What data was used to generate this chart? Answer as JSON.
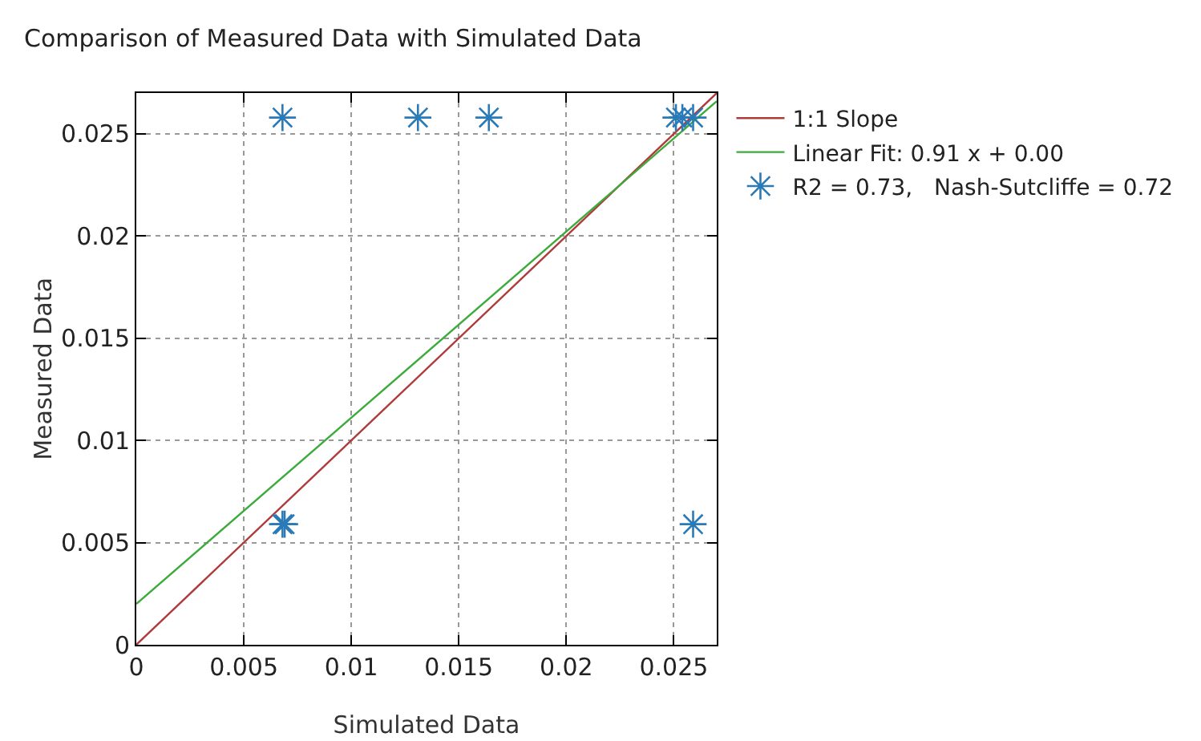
{
  "chart_data": {
    "type": "scatter",
    "title": "Comparison of Measured Data with Simulated Data",
    "xlabel": "Simulated Data",
    "ylabel": "Measured Data",
    "xlim": [
      0,
      0.027
    ],
    "ylim": [
      0,
      0.027
    ],
    "xticks": [
      0,
      0.005,
      0.01,
      0.015,
      0.02,
      0.025
    ],
    "yticks": [
      0,
      0.005,
      0.01,
      0.015,
      0.02,
      0.025
    ],
    "grid": true,
    "legend": "top right",
    "series": [
      {
        "name": "1:1 Slope",
        "type": "line",
        "color": "#b03a3a",
        "x": [
          0,
          0.027
        ],
        "values": [
          0,
          0.027
        ],
        "line_style": "solid",
        "marker": "none"
      },
      {
        "name": "Linear Fit: 0.91 x + 0.00",
        "type": "line",
        "color": "#3cab3c",
        "x": [
          0,
          0.027
        ],
        "values": [
          0.002,
          0.0266
        ],
        "line_style": "solid",
        "marker": "none"
      },
      {
        "name": "R2 = 0.73,   Nash-Sutcliffe = 0.72",
        "color": "#2a7ab8",
        "marker": "cross",
        "x": [
          0.0068,
          0.0131,
          0.0164,
          0.0251,
          0.0254,
          0.0259,
          0.0068,
          0.0069,
          0.0259
        ],
        "values": [
          0.0258,
          0.0258,
          0.0258,
          0.0258,
          0.0258,
          0.0258,
          0.0059,
          0.0059,
          0.0059
        ]
      }
    ]
  }
}
